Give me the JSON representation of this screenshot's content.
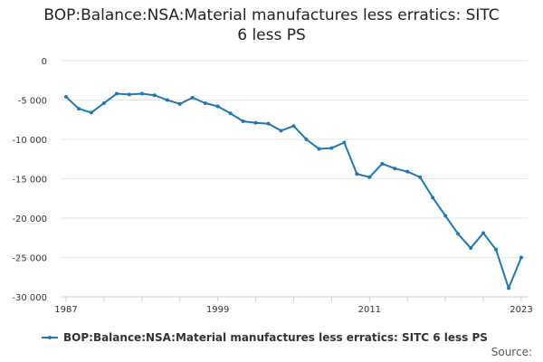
{
  "title_lines": [
    "BOP:Balance:NSA:Material manufactures less erratics: SITC",
    "6 less PS"
  ],
  "source_label": "Source:",
  "colors": {
    "series": "#1f77b4",
    "grid": "#e6e6e6",
    "axis": "#cccccc"
  },
  "chart_data": {
    "type": "line",
    "title": "BOP:Balance:NSA:Material manufactures less erratics: SITC 6 less PS",
    "xlabel": "",
    "ylabel": "",
    "ylim": [
      -30000,
      0
    ],
    "xlim": [
      1987,
      2023
    ],
    "y_ticks": [
      0,
      -5000,
      -10000,
      -15000,
      -20000,
      -25000,
      -30000
    ],
    "y_tick_labels": [
      "0",
      "-5 000",
      "-10 000",
      "-15 000",
      "-20 000",
      "-25 000",
      "-30 000"
    ],
    "x_ticks": [
      1987,
      1999,
      2011,
      2023
    ],
    "x_tick_labels": [
      "1987",
      "1999",
      "2011",
      "2023"
    ],
    "grid": true,
    "legend_position": "bottom",
    "x": [
      1987,
      1988,
      1989,
      1990,
      1991,
      1992,
      1993,
      1994,
      1995,
      1996,
      1997,
      1998,
      1999,
      2000,
      2001,
      2002,
      2003,
      2004,
      2005,
      2006,
      2007,
      2008,
      2009,
      2010,
      2011,
      2012,
      2013,
      2014,
      2015,
      2016,
      2017,
      2018,
      2019,
      2020,
      2021,
      2022,
      2023
    ],
    "series": [
      {
        "name": "BOP:Balance:NSA:Material manufactures less erratics: SITC 6 less PS",
        "values": [
          -4600,
          -6100,
          -6600,
          -5400,
          -4200,
          -4300,
          -4200,
          -4400,
          -5000,
          -5500,
          -4700,
          -5400,
          -5800,
          -6700,
          -7700,
          -7900,
          -8000,
          -8900,
          -8300,
          -10000,
          -11200,
          -11100,
          -10400,
          -14400,
          -14800,
          -13100,
          -13700,
          -14100,
          -14800,
          -17400,
          -19700,
          -22000,
          -23800,
          -21900,
          -24000,
          -28900,
          -25000
        ]
      }
    ]
  }
}
